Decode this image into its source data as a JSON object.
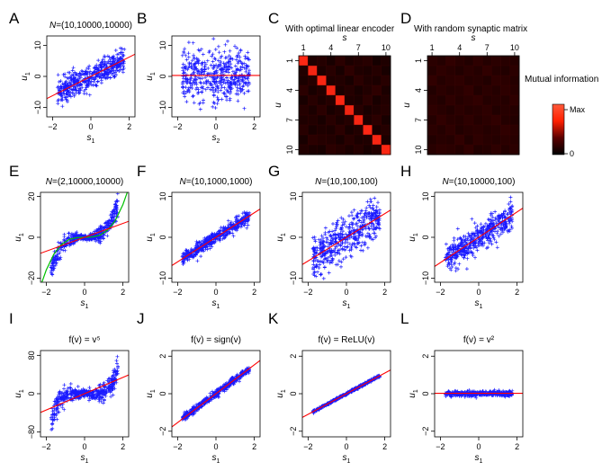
{
  "figure": {
    "mi_colorbar": {
      "title": "Mutual information",
      "max_label": "Max",
      "min_label": "0",
      "colors": [
        "#000000",
        "#5a0000",
        "#ff2000",
        "#ff5a3a"
      ]
    },
    "scatter_color": "#1a1aff",
    "fit_color": "#ff0000",
    "curve_color": "#00c000"
  },
  "chart_data": [
    {
      "id": "A",
      "type": "scatter",
      "letter": "A",
      "title_prefix": "N",
      "title": "=(10,10000,10000)",
      "xlabel": "s",
      "xsub": "1",
      "ylabel": "u",
      "ysub": "1",
      "xlim": [
        -2.3,
        2.3
      ],
      "ylim": [
        -13,
        13
      ],
      "xticks": [
        -2,
        0,
        2
      ],
      "yticks": [
        -10,
        0,
        10
      ],
      "xtick_labels": [
        "−2",
        "0",
        "2"
      ],
      "ytick_labels": [
        "−10",
        "0",
        "10"
      ],
      "pattern": "linear",
      "slope": 3.0,
      "noise": 2.0,
      "fit": {
        "slope": 3.1,
        "intercept": 0
      }
    },
    {
      "id": "B",
      "type": "scatter",
      "letter": "B",
      "title_prefix": "",
      "title": "",
      "xlabel": "s",
      "xsub": "2",
      "ylabel": "u",
      "ysub": "1",
      "xlim": [
        -2.3,
        2.3
      ],
      "ylim": [
        -13,
        13
      ],
      "xticks": [
        -2,
        0,
        2
      ],
      "yticks": [
        -10,
        0,
        10
      ],
      "xtick_labels": [
        "−2",
        "0",
        "2"
      ],
      "ytick_labels": [
        "−10",
        "0",
        "10"
      ],
      "pattern": "flat",
      "slope": 0,
      "noise": 4.5,
      "fit": {
        "slope": 0,
        "intercept": 0.3
      }
    },
    {
      "id": "E",
      "type": "scatter",
      "letter": "E",
      "title_prefix": "N",
      "title": "=(2,10000,10000)",
      "xlabel": "s",
      "xsub": "1",
      "ylabel": "u",
      "ysub": "1",
      "xlim": [
        -2.3,
        2.3
      ],
      "ylim": [
        -22,
        22
      ],
      "xticks": [
        -2,
        0,
        2
      ],
      "yticks": [
        -20,
        0,
        20
      ],
      "xtick_labels": [
        "−2",
        "0",
        "2"
      ],
      "ytick_labels": [
        "−20",
        "0",
        "20"
      ],
      "pattern": "cubic",
      "slope": 0,
      "noise": 1.2,
      "fit": {
        "slope": 3.4,
        "intercept": 0
      },
      "curve": {
        "x": [
          -2.3,
          -2.0,
          -1.6,
          -1.2,
          -0.8,
          -0.4,
          0,
          0.4,
          0.8,
          1.2,
          1.6,
          2.0,
          2.3
        ],
        "y": [
          -24,
          -16,
          -8.2,
          -3.5,
          -1.0,
          -0.13,
          0,
          0.13,
          1.0,
          3.5,
          8.2,
          16,
          24
        ]
      }
    },
    {
      "id": "F",
      "type": "scatter",
      "letter": "F",
      "title_prefix": "N",
      "title": "=(10,1000,1000)",
      "xlabel": "s",
      "xsub": "1",
      "ylabel": "u",
      "ysub": "1",
      "xlim": [
        -2.3,
        2.3
      ],
      "ylim": [
        -11,
        11
      ],
      "xticks": [
        -2,
        0,
        2
      ],
      "yticks": [
        -10,
        0,
        10
      ],
      "xtick_labels": [
        "−2",
        "0",
        "2"
      ],
      "ytick_labels": [
        "−10",
        "0",
        "10"
      ],
      "pattern": "linear",
      "slope": 3.0,
      "noise": 0.8,
      "fit": {
        "slope": 3.0,
        "intercept": 0
      }
    },
    {
      "id": "G",
      "type": "scatter",
      "letter": "G",
      "title_prefix": "N",
      "title": "=(10,100,100)",
      "xlabel": "s",
      "xsub": "1",
      "ylabel": "u",
      "ysub": "1",
      "xlim": [
        -2.3,
        2.3
      ],
      "ylim": [
        -11,
        11
      ],
      "xticks": [
        -2,
        0,
        2
      ],
      "yticks": [
        -10,
        0,
        10
      ],
      "xtick_labels": [
        "−2",
        "0",
        "2"
      ],
      "ytick_labels": [
        "−10",
        "0",
        "10"
      ],
      "pattern": "linear",
      "slope": 3.0,
      "noise": 2.5,
      "fit": {
        "slope": 2.9,
        "intercept": 0
      }
    },
    {
      "id": "H",
      "type": "scatter",
      "letter": "H",
      "title_prefix": "N",
      "title": "=(10,10000,100)",
      "xlabel": "s",
      "xsub": "1",
      "ylabel": "u",
      "ysub": "1",
      "xlim": [
        -2.3,
        2.3
      ],
      "ylim": [
        -11,
        11
      ],
      "xticks": [
        -2,
        0,
        2
      ],
      "yticks": [
        -10,
        0,
        10
      ],
      "xtick_labels": [
        "−2",
        "0",
        "2"
      ],
      "ytick_labels": [
        "−10",
        "0",
        "10"
      ],
      "pattern": "linear",
      "slope": 3.0,
      "noise": 1.8,
      "fit": {
        "slope": 3.1,
        "intercept": 0
      }
    },
    {
      "id": "I",
      "type": "scatter",
      "letter": "I",
      "title_prefix": "",
      "title": "f(v) = v⁵",
      "xlabel": "s",
      "xsub": "1",
      "ylabel": "u",
      "ysub": "1",
      "xlim": [
        -2.3,
        2.3
      ],
      "ylim": [
        -90,
        90
      ],
      "xticks": [
        -2,
        0,
        2
      ],
      "yticks": [
        -80,
        0,
        80
      ],
      "xtick_labels": [
        "−2",
        "0",
        "2"
      ],
      "ytick_labels": [
        "−80",
        "0",
        "80"
      ],
      "pattern": "quintic",
      "slope": 0,
      "noise": 6,
      "fit": {
        "slope": 17,
        "intercept": 0
      }
    },
    {
      "id": "J",
      "type": "scatter",
      "letter": "J",
      "title_prefix": "",
      "title": "f(v) = sign(v)",
      "xlabel": "s",
      "xsub": "1",
      "ylabel": "u",
      "ysub": "1",
      "xlim": [
        -2.3,
        2.3
      ],
      "ylim": [
        -2.3,
        2.3
      ],
      "xticks": [
        -2,
        0,
        2
      ],
      "yticks": [
        -2,
        0,
        2
      ],
      "xtick_labels": [
        "−2",
        "0",
        "2"
      ],
      "ytick_labels": [
        "−2",
        "0",
        "2"
      ],
      "pattern": "linear",
      "slope": 0.75,
      "noise": 0.09,
      "fit": {
        "slope": 0.77,
        "intercept": 0
      }
    },
    {
      "id": "K",
      "type": "scatter",
      "letter": "K",
      "title_prefix": "",
      "title": "f(v) = ReLU(v)",
      "xlabel": "s",
      "xsub": "1",
      "ylabel": "u",
      "ysub": "1",
      "xlim": [
        -2.3,
        2.3
      ],
      "ylim": [
        -2.3,
        2.3
      ],
      "xticks": [
        -2,
        0,
        2
      ],
      "yticks": [
        -2,
        0,
        2
      ],
      "xtick_labels": [
        "−2",
        "0",
        "2"
      ],
      "ytick_labels": [
        "−2",
        "0",
        "2"
      ],
      "pattern": "linear",
      "slope": 0.55,
      "noise": 0.03,
      "fit": {
        "slope": 0.55,
        "intercept": 0
      }
    },
    {
      "id": "L",
      "type": "scatter",
      "letter": "L",
      "title_prefix": "",
      "title": "f(v) = v²",
      "xlabel": "s",
      "xsub": "1",
      "ylabel": "u",
      "ysub": "1",
      "xlim": [
        -2.3,
        2.3
      ],
      "ylim": [
        -2.3,
        2.3
      ],
      "xticks": [
        -2,
        0,
        2
      ],
      "yticks": [
        -2,
        0,
        2
      ],
      "xtick_labels": [
        "−2",
        "0",
        "2"
      ],
      "ytick_labels": [
        "−2",
        "0",
        "2"
      ],
      "pattern": "flat",
      "slope": 0,
      "noise": 0.07,
      "fit": {
        "slope": 0,
        "intercept": 0.02
      }
    },
    {
      "id": "C",
      "type": "heatmap",
      "letter": "C",
      "title": "With optimal linear encoder",
      "xlabel": "s",
      "ylabel": "u",
      "xtick_labels": [
        "1",
        "4",
        "7",
        "10"
      ],
      "ytick_labels": [
        "1",
        "4",
        "7",
        "10"
      ],
      "tick_indices": [
        1,
        4,
        7,
        10
      ],
      "values": [
        [
          1.0,
          0.1,
          0.12,
          0.08,
          0.14,
          0.09,
          0.11,
          0.13,
          0.07,
          0.1
        ],
        [
          0.11,
          0.95,
          0.09,
          0.13,
          0.08,
          0.15,
          0.1,
          0.09,
          0.12,
          0.08
        ],
        [
          0.09,
          0.12,
          0.97,
          0.1,
          0.11,
          0.08,
          0.14,
          0.1,
          0.09,
          0.13
        ],
        [
          0.14,
          0.08,
          0.11,
          0.96,
          0.09,
          0.12,
          0.08,
          0.11,
          0.15,
          0.09
        ],
        [
          0.08,
          0.13,
          0.09,
          0.12,
          0.98,
          0.1,
          0.09,
          0.14,
          0.08,
          0.11
        ],
        [
          0.12,
          0.09,
          0.14,
          0.08,
          0.11,
          0.94,
          0.13,
          0.08,
          0.1,
          0.12
        ],
        [
          0.1,
          0.11,
          0.08,
          0.13,
          0.09,
          0.12,
          0.97,
          0.1,
          0.14,
          0.08
        ],
        [
          0.13,
          0.08,
          0.1,
          0.09,
          0.14,
          0.08,
          0.11,
          0.99,
          0.09,
          0.12
        ],
        [
          0.08,
          0.14,
          0.12,
          0.11,
          0.08,
          0.13,
          0.09,
          0.1,
          0.96,
          0.09
        ],
        [
          0.11,
          0.09,
          0.08,
          0.14,
          0.12,
          0.09,
          0.12,
          0.08,
          0.11,
          0.98
        ]
      ]
    },
    {
      "id": "D",
      "type": "heatmap",
      "letter": "D",
      "title": "With random synaptic matrix",
      "xlabel": "s",
      "ylabel": "u",
      "xtick_labels": [
        "1",
        "4",
        "7",
        "10"
      ],
      "ytick_labels": [
        "1",
        "4",
        "7",
        "10"
      ],
      "tick_indices": [
        1,
        4,
        7,
        10
      ],
      "values": [
        [
          0.14,
          0.12,
          0.16,
          0.13,
          0.11,
          0.15,
          0.12,
          0.14,
          0.13,
          0.12
        ],
        [
          0.12,
          0.15,
          0.13,
          0.11,
          0.14,
          0.12,
          0.16,
          0.12,
          0.11,
          0.14
        ],
        [
          0.16,
          0.12,
          0.14,
          0.15,
          0.12,
          0.13,
          0.11,
          0.15,
          0.14,
          0.12
        ],
        [
          0.11,
          0.14,
          0.12,
          0.13,
          0.16,
          0.11,
          0.14,
          0.12,
          0.15,
          0.13
        ],
        [
          0.13,
          0.11,
          0.15,
          0.12,
          0.14,
          0.16,
          0.12,
          0.13,
          0.12,
          0.15
        ],
        [
          0.15,
          0.13,
          0.11,
          0.14,
          0.12,
          0.13,
          0.15,
          0.11,
          0.13,
          0.12
        ],
        [
          0.12,
          0.16,
          0.13,
          0.12,
          0.15,
          0.12,
          0.14,
          0.16,
          0.12,
          0.11
        ],
        [
          0.14,
          0.12,
          0.15,
          0.11,
          0.13,
          0.14,
          0.12,
          0.13,
          0.16,
          0.14
        ],
        [
          0.11,
          0.13,
          0.12,
          0.16,
          0.11,
          0.15,
          0.13,
          0.12,
          0.14,
          0.13
        ],
        [
          0.13,
          0.15,
          0.14,
          0.12,
          0.16,
          0.11,
          0.12,
          0.15,
          0.12,
          0.14
        ]
      ]
    }
  ]
}
